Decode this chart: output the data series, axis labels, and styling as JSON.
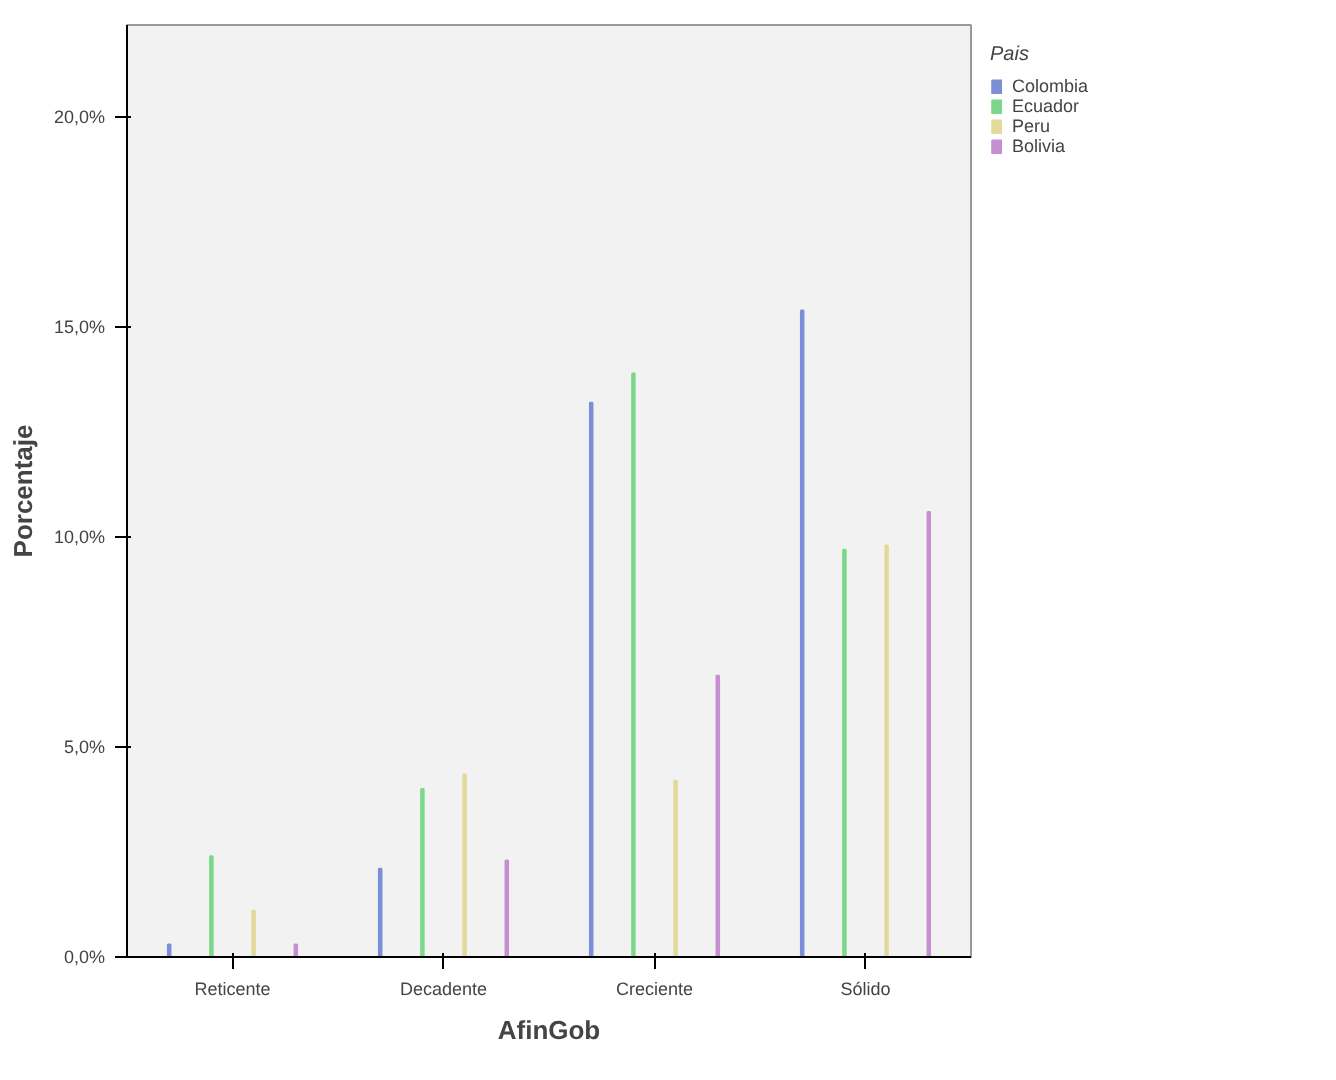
{
  "chart_data": {
    "type": "bar",
    "xlabel": "AfinGob",
    "ylabel": "Porcentaje",
    "legend_title": "Pais",
    "categories": [
      "Reticente",
      "Decadente",
      "Creciente",
      "Sólido"
    ],
    "series": [
      {
        "name": "Colombia",
        "color": "#7b8fd8",
        "values": [
          0.3,
          2.1,
          13.2,
          15.4
        ]
      },
      {
        "name": "Ecuador",
        "color": "#7bd88a",
        "values": [
          2.4,
          4.0,
          13.9,
          9.7
        ]
      },
      {
        "name": "Peru",
        "color": "#e3d99a",
        "values": [
          1.1,
          4.35,
          4.2,
          9.8
        ]
      },
      {
        "name": "Bolivia",
        "color": "#c68fd0",
        "values": [
          0.3,
          2.3,
          6.7,
          10.6
        ]
      }
    ],
    "ylim": [
      0,
      22.2
    ],
    "yticks": [
      {
        "value": 0,
        "label": "0,0%"
      },
      {
        "value": 5,
        "label": "5,0%"
      },
      {
        "value": 10,
        "label": "10,0%"
      },
      {
        "value": 15,
        "label": "15,0%"
      },
      {
        "value": 20,
        "label": "20,0%"
      }
    ],
    "grid": false,
    "legend": "top right"
  }
}
